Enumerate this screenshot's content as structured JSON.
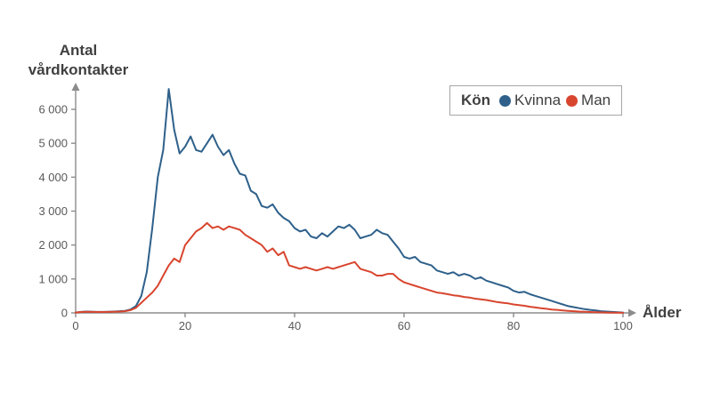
{
  "chart_data": {
    "type": "line",
    "title": "",
    "ylabel": "Antal vårdkontakter",
    "xlabel": "Ålder",
    "legend_title": "Kön",
    "legend_position": "top-right",
    "grid": false,
    "xlim": [
      0,
      100
    ],
    "ylim": [
      0,
      6000
    ],
    "x_ticks": [
      0,
      20,
      40,
      60,
      80,
      100
    ],
    "x_tick_labels": [
      "0",
      "20",
      "40",
      "60",
      "80",
      "100"
    ],
    "y_ticks": [
      0,
      1000,
      2000,
      3000,
      4000,
      5000,
      6000
    ],
    "y_tick_labels": [
      "0",
      "1 000",
      "2 000",
      "3 000",
      "4 000",
      "5 000",
      "6 000"
    ],
    "axis_color": "#8c8c8c",
    "tick_label_color": "#595959",
    "label_color": "#404040",
    "x": [
      0,
      1,
      2,
      3,
      4,
      5,
      6,
      7,
      8,
      9,
      10,
      11,
      12,
      13,
      14,
      15,
      16,
      17,
      18,
      19,
      20,
      21,
      22,
      23,
      24,
      25,
      26,
      27,
      28,
      29,
      30,
      31,
      32,
      33,
      34,
      35,
      36,
      37,
      38,
      39,
      40,
      41,
      42,
      43,
      44,
      45,
      46,
      47,
      48,
      49,
      50,
      51,
      52,
      53,
      54,
      55,
      56,
      57,
      58,
      59,
      60,
      61,
      62,
      63,
      64,
      65,
      66,
      67,
      68,
      69,
      70,
      71,
      72,
      73,
      74,
      75,
      76,
      77,
      78,
      79,
      80,
      81,
      82,
      83,
      84,
      85,
      86,
      87,
      88,
      89,
      90,
      91,
      92,
      93,
      94,
      95,
      96,
      97,
      98,
      99,
      100
    ],
    "series": [
      {
        "name": "Kvinna",
        "color": "#2e608a",
        "values": [
          10,
          30,
          40,
          35,
          30,
          30,
          35,
          40,
          50,
          60,
          100,
          200,
          500,
          1200,
          2500,
          4000,
          4800,
          6600,
          5400,
          4700,
          4900,
          5200,
          4800,
          4750,
          5000,
          5250,
          4900,
          4650,
          4800,
          4400,
          4100,
          4050,
          3600,
          3500,
          3150,
          3100,
          3200,
          2950,
          2800,
          2700,
          2500,
          2400,
          2450,
          2250,
          2200,
          2350,
          2250,
          2400,
          2550,
          2500,
          2600,
          2450,
          2200,
          2250,
          2300,
          2450,
          2350,
          2300,
          2100,
          1900,
          1650,
          1600,
          1650,
          1500,
          1450,
          1400,
          1250,
          1200,
          1150,
          1200,
          1100,
          1150,
          1100,
          1000,
          1050,
          950,
          900,
          850,
          800,
          750,
          650,
          600,
          620,
          550,
          500,
          450,
          400,
          350,
          300,
          250,
          200,
          170,
          140,
          110,
          90,
          70,
          50,
          40,
          30,
          20,
          10
        ]
      },
      {
        "name": "Man",
        "color": "#d8452e",
        "values": [
          10,
          25,
          35,
          30,
          25,
          25,
          30,
          35,
          40,
          50,
          80,
          150,
          300,
          450,
          600,
          800,
          1100,
          1400,
          1600,
          1500,
          2000,
          2200,
          2400,
          2500,
          2650,
          2500,
          2550,
          2450,
          2550,
          2500,
          2450,
          2300,
          2200,
          2100,
          2000,
          1800,
          1900,
          1700,
          1800,
          1400,
          1350,
          1300,
          1350,
          1300,
          1250,
          1300,
          1350,
          1300,
          1350,
          1400,
          1450,
          1500,
          1300,
          1250,
          1200,
          1100,
          1100,
          1150,
          1150,
          1000,
          900,
          850,
          800,
          750,
          700,
          650,
          600,
          580,
          550,
          520,
          500,
          470,
          450,
          420,
          400,
          380,
          350,
          320,
          300,
          280,
          250,
          230,
          210,
          180,
          160,
          140,
          120,
          100,
          90,
          70,
          60,
          50,
          40,
          35,
          25,
          20,
          15,
          10,
          8,
          5,
          3
        ]
      }
    ]
  }
}
